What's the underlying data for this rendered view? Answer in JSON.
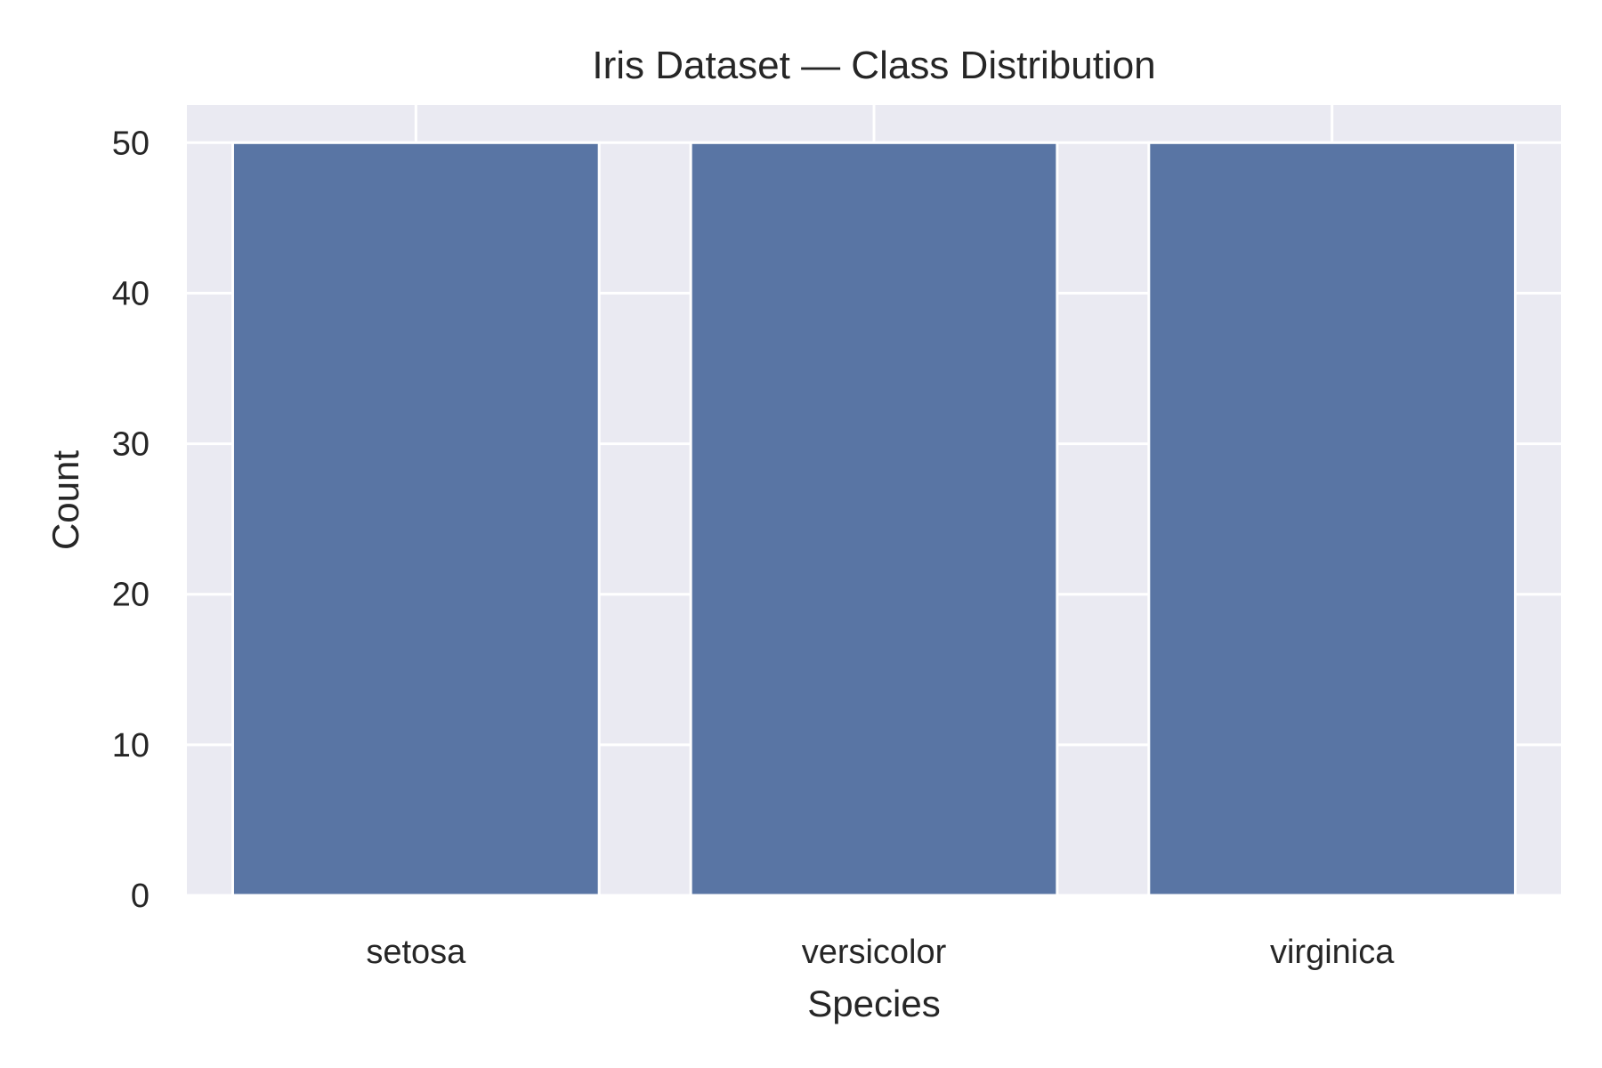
{
  "chart_data": {
    "type": "bar",
    "title": "Iris Dataset — Class Distribution",
    "xlabel": "Species",
    "ylabel": "Count",
    "categories": [
      "setosa",
      "versicolor",
      "virginica"
    ],
    "values": [
      50,
      50,
      50
    ],
    "ylim": [
      0,
      52.5
    ],
    "yticks": [
      0,
      10,
      20,
      30,
      40,
      50
    ],
    "grid": true,
    "legend": "none",
    "colors": {
      "bar": "#5975a4",
      "plot_background": "#eaeaf2",
      "grid": "#ffffff",
      "text": "#262626"
    }
  }
}
